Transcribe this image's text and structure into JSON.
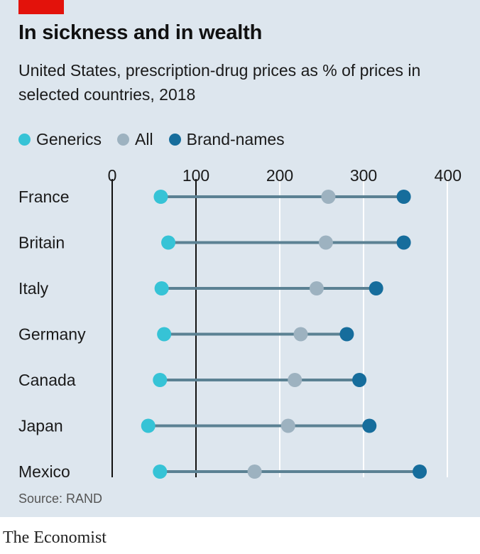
{
  "header": {
    "title": "In sickness and in wealth",
    "subtitle": "United States, prescription-drug prices as % of prices in selected countries, 2018"
  },
  "footer": {
    "source": "Source: RAND",
    "brand": "The Economist"
  },
  "colors": {
    "accent_red": "#e3120b",
    "generics": "#36c3d6",
    "all": "#9db2c0",
    "brand_names": "#166d9c",
    "connector": "#5b8193",
    "background": "#dde6ee"
  },
  "chart_data": {
    "type": "dot-range",
    "title": "In sickness and in wealth",
    "subtitle": "United States, prescription-drug prices as % of prices in selected countries, 2018",
    "xlim": [
      0,
      400
    ],
    "xticks": [
      0,
      100,
      200,
      300,
      400
    ],
    "reference_line": 100,
    "grid": true,
    "legend_position": "top-left",
    "categories": [
      "France",
      "Britain",
      "Italy",
      "Germany",
      "Canada",
      "Japan",
      "Mexico"
    ],
    "series": [
      {
        "name": "Generics",
        "values": [
          58,
          67,
          59,
          62,
          57,
          43,
          57
        ]
      },
      {
        "name": "All",
        "values": [
          258,
          255,
          244,
          225,
          218,
          210,
          170
        ]
      },
      {
        "name": "Brand-names",
        "values": [
          348,
          348,
          315,
          280,
          295,
          307,
          367
        ]
      }
    ]
  }
}
